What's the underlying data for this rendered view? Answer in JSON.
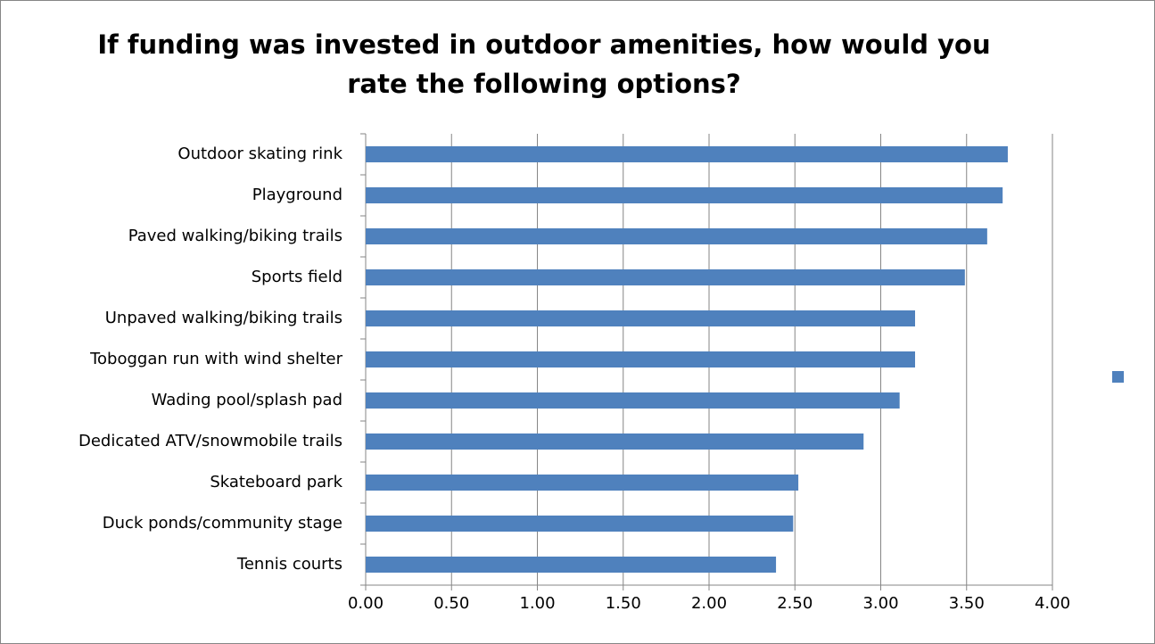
{
  "chart_data": {
    "type": "bar",
    "orientation": "horizontal",
    "title": [
      "If funding was invested in outdoor amenities, how would you",
      "rate the following options?"
    ],
    "categories": [
      "Outdoor skating rink",
      "Playground",
      "Paved walking/biking trails",
      "Sports field",
      "Unpaved walking/biking trails",
      "Toboggan run with wind shelter",
      "Wading pool/splash pad",
      "Dedicated ATV/snowmobile trails",
      "Skateboard park",
      "Duck ponds/community stage",
      "Tennis courts"
    ],
    "values": [
      3.74,
      3.71,
      3.62,
      3.49,
      3.2,
      3.2,
      3.11,
      2.9,
      2.52,
      2.49,
      2.39
    ],
    "color": "#4f81bd",
    "xlim": [
      0,
      4
    ],
    "xticks": [
      {
        "value": 0,
        "label": "0.00"
      },
      {
        "value": 0.5,
        "label": "0.50"
      },
      {
        "value": 1,
        "label": "1.00"
      },
      {
        "value": 1.5,
        "label": "1.50"
      },
      {
        "value": 2,
        "label": "2.00"
      },
      {
        "value": 2.5,
        "label": "2.50"
      },
      {
        "value": 3,
        "label": "3.00"
      },
      {
        "value": 3.5,
        "label": "3.50"
      },
      {
        "value": 4,
        "label": "4.00"
      }
    ],
    "grid": true
  }
}
